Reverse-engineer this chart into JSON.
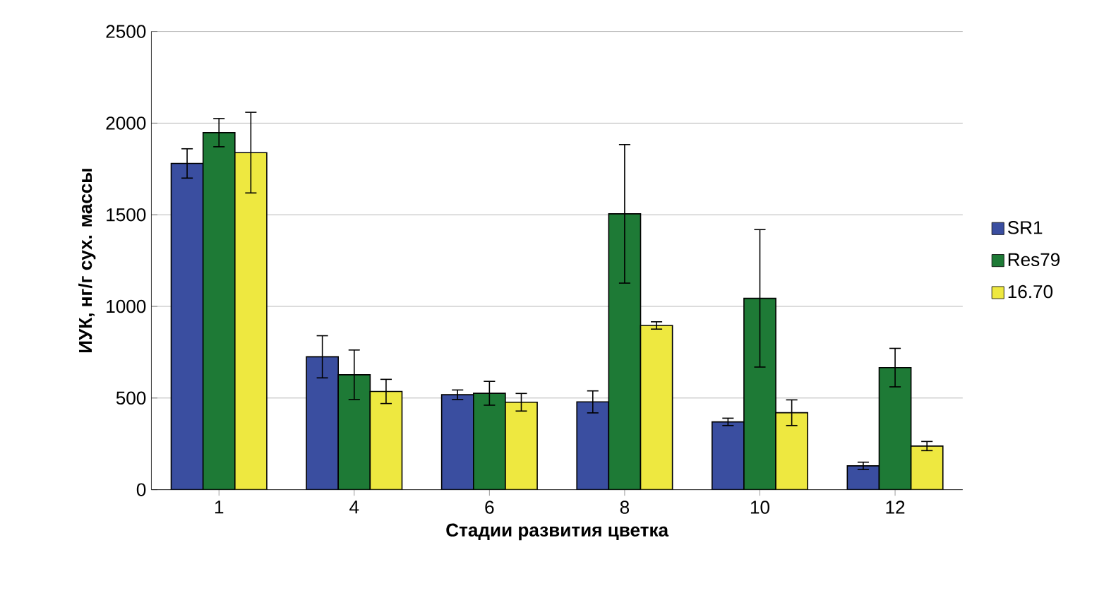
{
  "chart_data": {
    "type": "bar",
    "xlabel": "Стадии развития цветка",
    "ylabel": "ИУК, нг/г сух. массы",
    "categories": [
      "1",
      "4",
      "6",
      "8",
      "10",
      "12"
    ],
    "series": [
      {
        "name": "SR1",
        "color": "#3a4ea0",
        "values": [
          1780,
          725,
          518,
          479,
          370,
          130
        ],
        "errors": [
          80,
          115,
          26,
          60,
          20,
          20
        ]
      },
      {
        "name": "Res79",
        "color": "#1e7a36",
        "values": [
          1948,
          627,
          526,
          1505,
          1044,
          666
        ],
        "errors": [
          77,
          135,
          65,
          378,
          375,
          105
        ]
      },
      {
        "name": "16.70",
        "color": "#eee840",
        "values": [
          1839,
          536,
          477,
          896,
          420,
          238
        ],
        "errors": [
          220,
          66,
          48,
          20,
          70,
          25
        ]
      }
    ],
    "ylim": [
      0,
      2500
    ],
    "yticks": [
      0,
      500,
      1000,
      1500,
      2000,
      2500
    ],
    "grid": "y",
    "legend": "right"
  }
}
